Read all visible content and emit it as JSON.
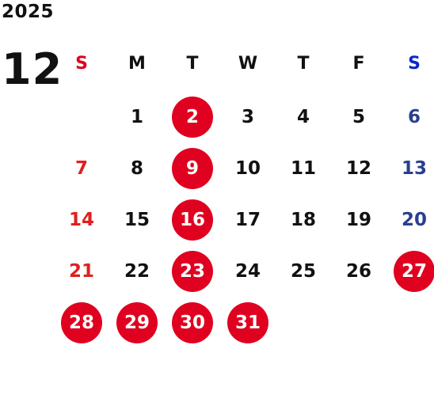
{
  "year": "2025",
  "month": "12",
  "weekdays": [
    "S",
    "M",
    "T",
    "W",
    "T",
    "F",
    "S"
  ],
  "colors": {
    "sunday": "#e0001f",
    "saturday": "#0b27c7",
    "highlight": "#e0001f"
  },
  "weeks": [
    [
      "",
      "1",
      "2",
      "3",
      "4",
      "5",
      "6"
    ],
    [
      "7",
      "8",
      "9",
      "10",
      "11",
      "12",
      "13"
    ],
    [
      "14",
      "15",
      "16",
      "17",
      "18",
      "19",
      "20"
    ],
    [
      "21",
      "22",
      "23",
      "24",
      "25",
      "26",
      "27"
    ],
    [
      "28",
      "29",
      "30",
      "31",
      "",
      "",
      ""
    ]
  ],
  "highlighted_days": [
    "2",
    "9",
    "16",
    "23",
    "27",
    "28",
    "29",
    "30",
    "31"
  ]
}
